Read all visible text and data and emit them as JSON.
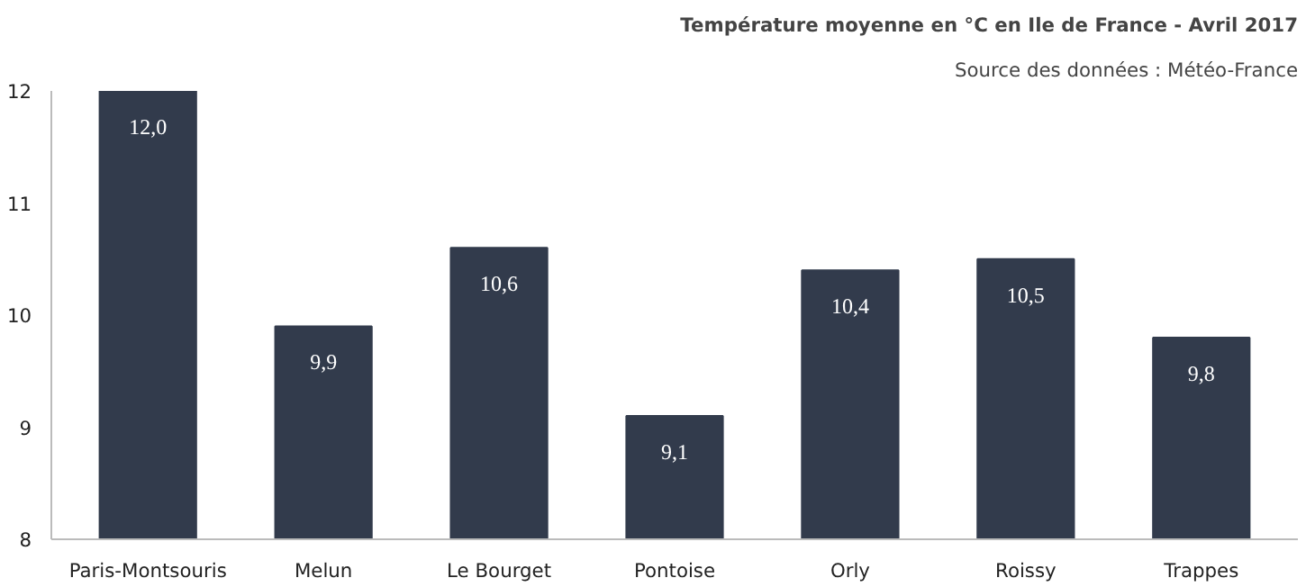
{
  "chart_data": {
    "type": "bar",
    "title": "Température moyenne en °C en Ile de France - Avril 2017",
    "subtitle": "Source des données : Météo-France",
    "categories": [
      "Paris-Montsouris",
      "Melun",
      "Le Bourget",
      "Pontoise",
      "Orly",
      "Roissy",
      "Trappes"
    ],
    "values": [
      12.0,
      9.9,
      10.6,
      9.1,
      10.4,
      10.5,
      9.8
    ],
    "value_labels": [
      "12,0",
      "9,9",
      "10,6",
      "9,1",
      "10,4",
      "10,5",
      "9,8"
    ],
    "color": "#323b4c",
    "ylim": [
      8,
      12
    ],
    "yticks": [
      8,
      9,
      10,
      11,
      12
    ],
    "grid": false
  }
}
